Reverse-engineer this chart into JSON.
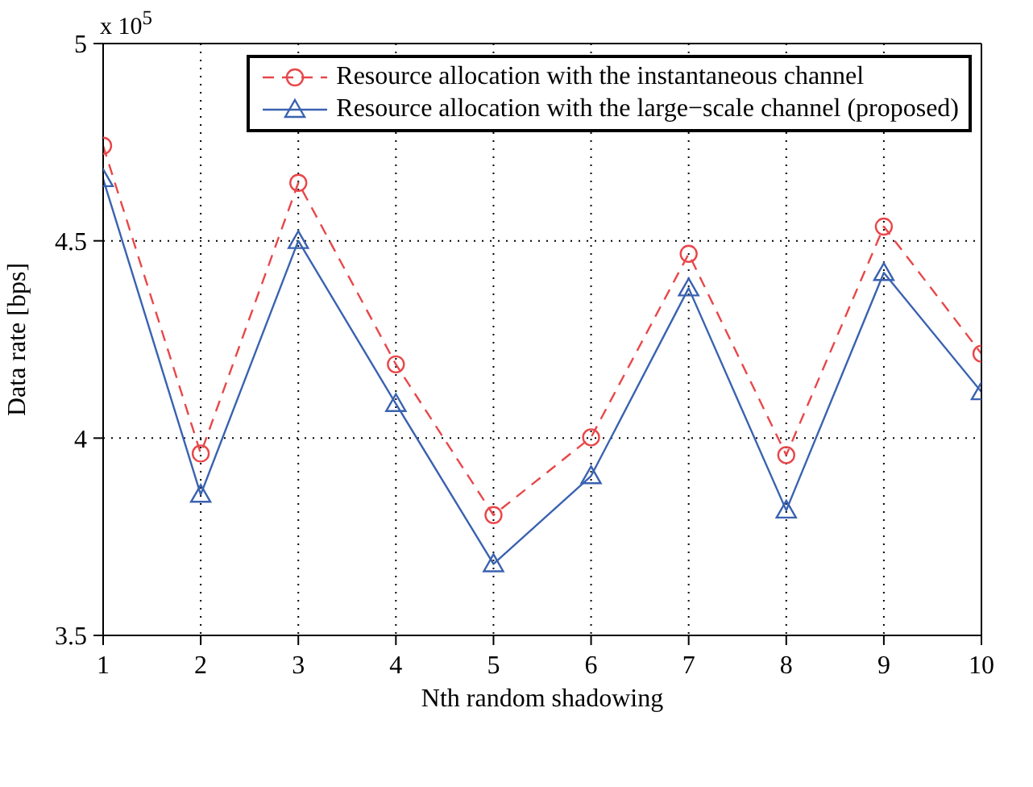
{
  "chart_data": {
    "type": "line",
    "xlabel": "Nth random shadowing",
    "ylabel": "Data rate [bps]",
    "annotations": [
      "x 10$^{5}$"
    ],
    "x": [
      1,
      2,
      3,
      4,
      5,
      6,
      7,
      8,
      9,
      10
    ],
    "series": [
      {
        "name": "Resource allocation with the instantaneous channel",
        "color": "#e8474a",
        "marker": "circle",
        "line_style": "dashed",
        "values": [
          4.741,
          3.961,
          4.647,
          4.187,
          3.805,
          4.002,
          4.467,
          3.957,
          4.536,
          4.214
        ]
      },
      {
        "name": "Resource allocation with the large−scale channel (proposed)",
        "color": "#3a62b0",
        "marker": "triangle",
        "line_style": "solid",
        "values": [
          4.657,
          3.857,
          4.5,
          4.087,
          3.681,
          3.904,
          4.38,
          3.817,
          4.419,
          4.117
        ]
      }
    ],
    "xlim": [
      1,
      10
    ],
    "xticks": [
      1,
      2,
      3,
      4,
      5,
      6,
      7,
      8,
      9,
      10
    ],
    "ylim": [
      3.5,
      5
    ],
    "yticks": [
      3.5,
      4,
      4.5,
      5
    ],
    "grid": true,
    "legend": "top right"
  }
}
